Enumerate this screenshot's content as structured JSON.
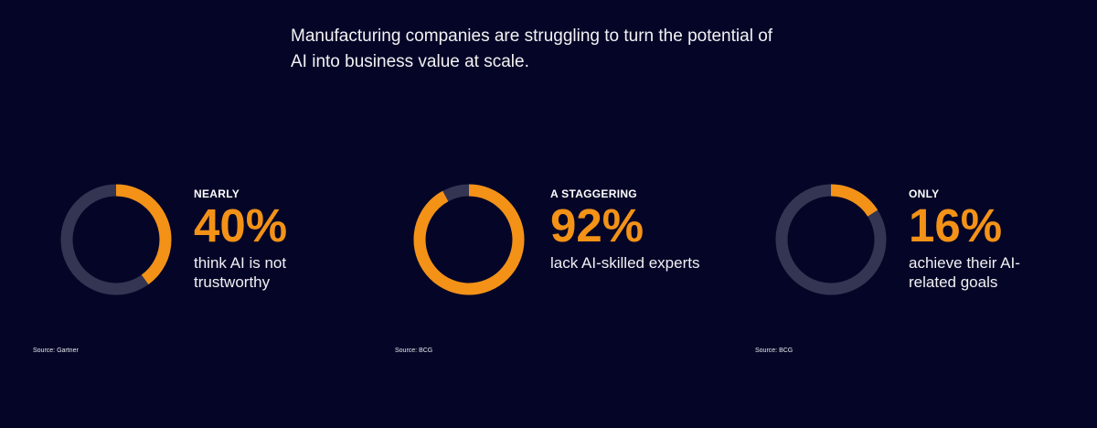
{
  "headline": {
    "line1": "Manufacturing companies are struggling to turn the potential of",
    "line2": "AI into business value at scale."
  },
  "colors": {
    "background": "#050627",
    "accent": "#f39217",
    "track": "#333552"
  },
  "chart_data": [
    {
      "type": "pie",
      "qualifier": "NEARLY",
      "value_label": "40%",
      "value": 40,
      "max": 100,
      "description": "think AI is not trustworthy",
      "source": "Source: Gartner"
    },
    {
      "type": "pie",
      "qualifier": "A STAGGERING",
      "value_label": "92%",
      "value": 92,
      "max": 100,
      "description": "lack AI-skilled experts",
      "source": "Source: BCG"
    },
    {
      "type": "pie",
      "qualifier": "ONLY",
      "value_label": "16%",
      "value": 16,
      "max": 100,
      "description": "achieve their AI-related goals",
      "source": "Source: BCG"
    }
  ]
}
